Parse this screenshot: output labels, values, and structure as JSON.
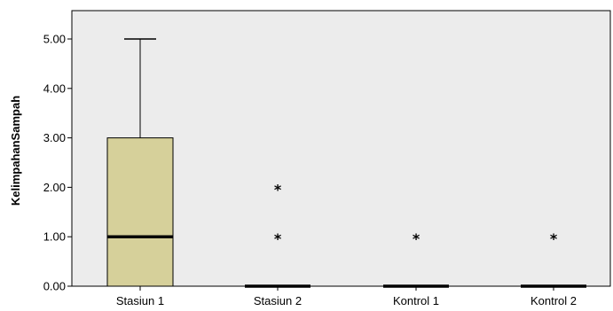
{
  "chart_data": {
    "type": "boxplot",
    "ylabel": "KelimpahanSampah",
    "ylim": [
      0,
      5.3
    ],
    "yticks": [
      "0.00",
      "1.00",
      "2.00",
      "3.00",
      "4.00",
      "5.00"
    ],
    "categories": [
      "Stasiun 1",
      "Stasiun 2",
      "Kontrol 1",
      "Kontrol 2"
    ],
    "boxes": [
      {
        "category": "Stasiun 1",
        "min": 0,
        "q1": 0,
        "median": 1,
        "q3": 3,
        "max": 5,
        "outliers": []
      },
      {
        "category": "Stasiun 2",
        "min": 0,
        "q1": 0,
        "median": 0,
        "q3": 0,
        "max": 0,
        "outliers": [
          1,
          2
        ]
      },
      {
        "category": "Kontrol 1",
        "min": 0,
        "q1": 0,
        "median": 0,
        "q3": 0,
        "max": 0,
        "outliers": [
          1
        ]
      },
      {
        "category": "Kontrol 2",
        "min": 0,
        "q1": 0,
        "median": 0,
        "q3": 0,
        "max": 0,
        "outliers": [
          1
        ]
      }
    ],
    "outlier_marker": "*",
    "grid": false,
    "colors": {
      "plot_background": "#ececec",
      "box_fill": "#d6d09a",
      "stroke": "#000000"
    }
  }
}
